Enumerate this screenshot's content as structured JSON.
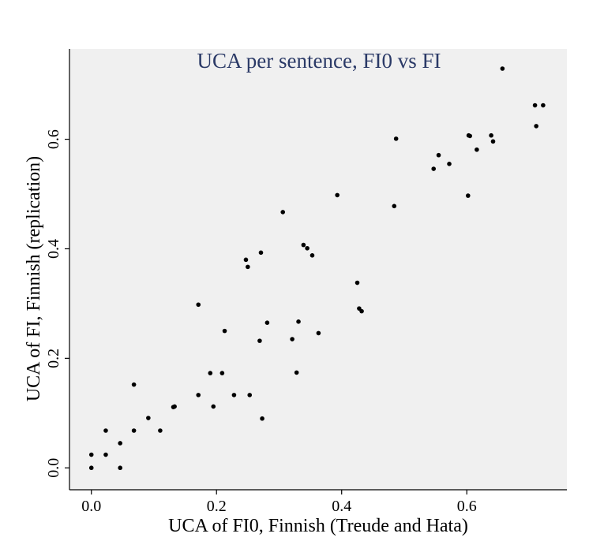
{
  "chart_data": {
    "type": "scatter",
    "title": "UCA per sentence, FI0 vs FI",
    "xlabel": "UCA of FI0, Finnish (Treude and Hata)",
    "ylabel": "UCA of FI, Finnish (replication)",
    "xlim": [
      -0.035,
      0.76
    ],
    "ylim": [
      -0.04,
      0.765
    ],
    "x_ticks": [
      0.0,
      0.2,
      0.4,
      0.6
    ],
    "y_ticks": [
      0.0,
      0.2,
      0.4,
      0.6
    ],
    "x_tick_labels": [
      "0.0",
      "0.2",
      "0.4",
      "0.6"
    ],
    "y_tick_labels": [
      "0.0",
      "0.2",
      "0.4",
      "0.6"
    ],
    "grid": false,
    "legend": "none",
    "colors": {
      "panel": "#f0f0f0",
      "points": "#000000",
      "title": "#2b3a67"
    },
    "points": [
      {
        "x": 0.0,
        "y": 0.024
      },
      {
        "x": 0.0,
        "y": 0.0
      },
      {
        "x": 0.023,
        "y": 0.068
      },
      {
        "x": 0.023,
        "y": 0.024
      },
      {
        "x": 0.046,
        "y": 0.045
      },
      {
        "x": 0.046,
        "y": 0.0
      },
      {
        "x": 0.068,
        "y": 0.152
      },
      {
        "x": 0.068,
        "y": 0.068
      },
      {
        "x": 0.091,
        "y": 0.091
      },
      {
        "x": 0.11,
        "y": 0.068
      },
      {
        "x": 0.131,
        "y": 0.111
      },
      {
        "x": 0.133,
        "y": 0.112
      },
      {
        "x": 0.171,
        "y": 0.298
      },
      {
        "x": 0.171,
        "y": 0.133
      },
      {
        "x": 0.19,
        "y": 0.173
      },
      {
        "x": 0.195,
        "y": 0.112
      },
      {
        "x": 0.209,
        "y": 0.173
      },
      {
        "x": 0.213,
        "y": 0.25
      },
      {
        "x": 0.228,
        "y": 0.133
      },
      {
        "x": 0.247,
        "y": 0.38
      },
      {
        "x": 0.25,
        "y": 0.367
      },
      {
        "x": 0.253,
        "y": 0.133
      },
      {
        "x": 0.269,
        "y": 0.232
      },
      {
        "x": 0.271,
        "y": 0.393
      },
      {
        "x": 0.273,
        "y": 0.09
      },
      {
        "x": 0.281,
        "y": 0.265
      },
      {
        "x": 0.306,
        "y": 0.467
      },
      {
        "x": 0.321,
        "y": 0.235
      },
      {
        "x": 0.328,
        "y": 0.174
      },
      {
        "x": 0.331,
        "y": 0.267
      },
      {
        "x": 0.339,
        "y": 0.407
      },
      {
        "x": 0.345,
        "y": 0.401
      },
      {
        "x": 0.353,
        "y": 0.388
      },
      {
        "x": 0.363,
        "y": 0.246
      },
      {
        "x": 0.393,
        "y": 0.498
      },
      {
        "x": 0.425,
        "y": 0.338
      },
      {
        "x": 0.428,
        "y": 0.291
      },
      {
        "x": 0.432,
        "y": 0.286
      },
      {
        "x": 0.484,
        "y": 0.478
      },
      {
        "x": 0.487,
        "y": 0.601
      },
      {
        "x": 0.547,
        "y": 0.546
      },
      {
        "x": 0.555,
        "y": 0.571
      },
      {
        "x": 0.572,
        "y": 0.555
      },
      {
        "x": 0.602,
        "y": 0.497
      },
      {
        "x": 0.603,
        "y": 0.607
      },
      {
        "x": 0.605,
        "y": 0.606
      },
      {
        "x": 0.616,
        "y": 0.581
      },
      {
        "x": 0.639,
        "y": 0.607
      },
      {
        "x": 0.642,
        "y": 0.596
      },
      {
        "x": 0.657,
        "y": 0.729
      },
      {
        "x": 0.709,
        "y": 0.662
      },
      {
        "x": 0.711,
        "y": 0.624
      },
      {
        "x": 0.722,
        "y": 0.662
      }
    ]
  }
}
